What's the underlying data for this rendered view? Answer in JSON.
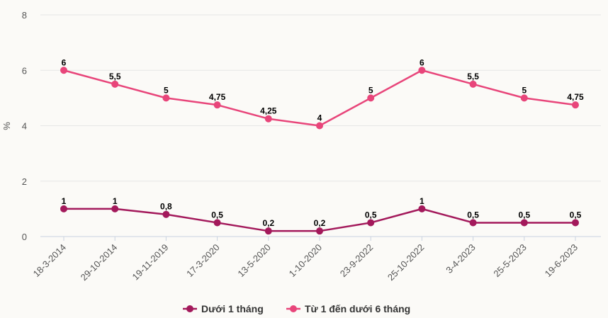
{
  "chart_data": {
    "type": "line",
    "title": "",
    "xlabel": "",
    "ylabel": "%",
    "ylim": [
      0,
      8
    ],
    "yticks": [
      0,
      2,
      4,
      6,
      8
    ],
    "grid": true,
    "legend_position": "bottom",
    "categories": [
      "18-3-2014",
      "29-10-2014",
      "19-11-2019",
      "17-3-2020",
      "13-5-2020",
      "1-10-2020",
      "23-9-2022",
      "25-10-2022",
      "3-4-2023",
      "25-5-2023",
      "19-6-2023"
    ],
    "series": [
      {
        "name": "Dưới 1 tháng",
        "color": "#a3195b",
        "values": [
          1,
          1,
          0.8,
          0.5,
          0.2,
          0.2,
          0.5,
          1,
          0.5,
          0.5,
          0.5
        ],
        "labels": [
          "1",
          "1",
          "0,8",
          "0,5",
          "0,2",
          "0,2",
          "0,5",
          "1",
          "0,5",
          "0,5",
          "0,5"
        ]
      },
      {
        "name": "Từ 1 đến dưới 6 tháng",
        "color": "#e8457a",
        "values": [
          6,
          5.5,
          5,
          4.75,
          4.25,
          4,
          5,
          6,
          5.5,
          5,
          4.75
        ],
        "labels": [
          "6",
          "5,5",
          "5",
          "4,75",
          "4,25",
          "4",
          "5",
          "6",
          "5,5",
          "5",
          "4,75"
        ]
      }
    ]
  }
}
